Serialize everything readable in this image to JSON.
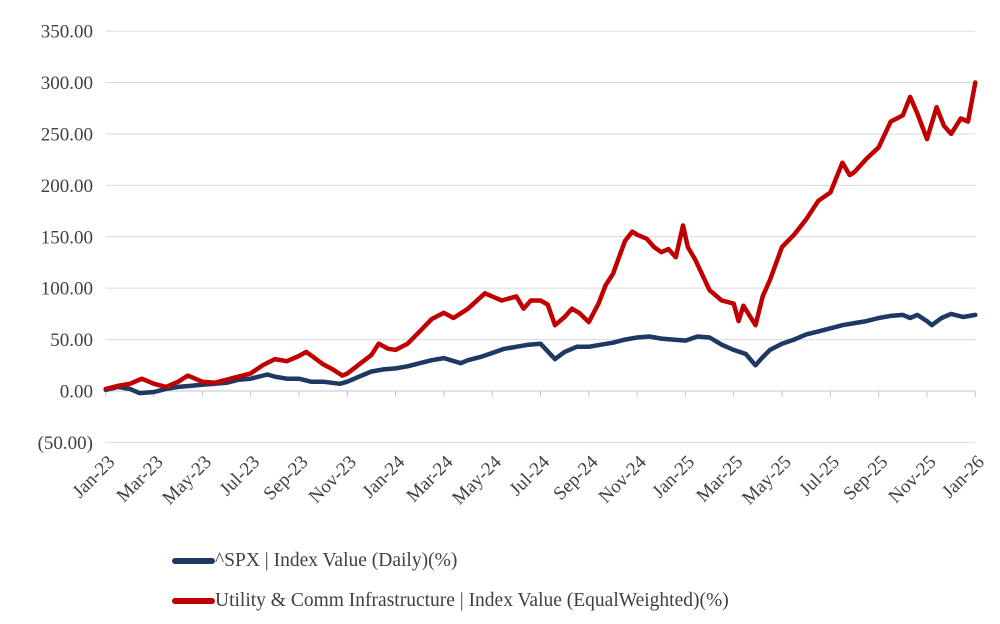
{
  "chart_data": {
    "type": "line",
    "title": "",
    "grid": true,
    "legend_position": "bottom-left",
    "x_axis": {
      "unit": "month",
      "range_months": [
        0,
        36
      ],
      "ticks": [
        {
          "label": "Jan-23",
          "month": 0
        },
        {
          "label": "Mar-23",
          "month": 2
        },
        {
          "label": "May-23",
          "month": 4
        },
        {
          "label": "Jul-23",
          "month": 6
        },
        {
          "label": "Sep-23",
          "month": 8
        },
        {
          "label": "Nov-23",
          "month": 10
        },
        {
          "label": "Jan-24",
          "month": 12
        },
        {
          "label": "Mar-24",
          "month": 14
        },
        {
          "label": "May-24",
          "month": 16
        },
        {
          "label": "Jul-24",
          "month": 18
        },
        {
          "label": "Sep-24",
          "month": 20
        },
        {
          "label": "Nov-24",
          "month": 22
        },
        {
          "label": "Jan-25",
          "month": 24
        },
        {
          "label": "Mar-25",
          "month": 26
        },
        {
          "label": "May-25",
          "month": 28
        },
        {
          "label": "Jul-25",
          "month": 30
        },
        {
          "label": "Sep-25",
          "month": 32
        },
        {
          "label": "Nov-25",
          "month": 34
        },
        {
          "label": "Jan-26",
          "month": 36
        }
      ]
    },
    "y_axis": {
      "range": [
        -50,
        350
      ],
      "ticks": [
        {
          "label": "350.00",
          "value": 350
        },
        {
          "label": "300.00",
          "value": 300
        },
        {
          "label": "250.00",
          "value": 250
        },
        {
          "label": "200.00",
          "value": 200
        },
        {
          "label": "150.00",
          "value": 150
        },
        {
          "label": "100.00",
          "value": 100
        },
        {
          "label": "50.00",
          "value": 50
        },
        {
          "label": "0.00",
          "value": 0
        },
        {
          "label": "(50.00)",
          "value": -50
        }
      ]
    },
    "colors": {
      "spx": "#1f3864",
      "utility": "#c00000",
      "gridline": "#d9d9d9",
      "axis": "#c6c6c6",
      "text": "#404040"
    },
    "series": [
      {
        "id": "spx",
        "name": "^SPX | Index Value (Daily)(%)",
        "color": "#1f3864",
        "points": [
          [
            0,
            1
          ],
          [
            0.5,
            4
          ],
          [
            1,
            2
          ],
          [
            1.4,
            -2
          ],
          [
            2,
            -1
          ],
          [
            2.5,
            2
          ],
          [
            3,
            4
          ],
          [
            3.5,
            5
          ],
          [
            4,
            6
          ],
          [
            4.5,
            7
          ],
          [
            5,
            8
          ],
          [
            5.5,
            11
          ],
          [
            6,
            12
          ],
          [
            6.7,
            16
          ],
          [
            7,
            14
          ],
          [
            7.5,
            12
          ],
          [
            8,
            12
          ],
          [
            8.5,
            9
          ],
          [
            9,
            9
          ],
          [
            9.7,
            7
          ],
          [
            10,
            9
          ],
          [
            10.5,
            14
          ],
          [
            11,
            19
          ],
          [
            11.5,
            21
          ],
          [
            12,
            22
          ],
          [
            12.5,
            24
          ],
          [
            13,
            27
          ],
          [
            13.5,
            30
          ],
          [
            14,
            32
          ],
          [
            14.7,
            27
          ],
          [
            15,
            30
          ],
          [
            15.5,
            33
          ],
          [
            16,
            37
          ],
          [
            16.5,
            41
          ],
          [
            17,
            43
          ],
          [
            17.5,
            45
          ],
          [
            18,
            46
          ],
          [
            18.6,
            31
          ],
          [
            19,
            38
          ],
          [
            19.5,
            43
          ],
          [
            20,
            43
          ],
          [
            20.5,
            45
          ],
          [
            21,
            47
          ],
          [
            21.5,
            50
          ],
          [
            22,
            52
          ],
          [
            22.5,
            53
          ],
          [
            23,
            51
          ],
          [
            23.5,
            50
          ],
          [
            24,
            49
          ],
          [
            24.5,
            53
          ],
          [
            25,
            52
          ],
          [
            25.5,
            45
          ],
          [
            26,
            40
          ],
          [
            26.5,
            36
          ],
          [
            26.9,
            25
          ],
          [
            27.2,
            33
          ],
          [
            27.5,
            40
          ],
          [
            28,
            46
          ],
          [
            28.5,
            50
          ],
          [
            29,
            55
          ],
          [
            29.5,
            58
          ],
          [
            30,
            61
          ],
          [
            30.5,
            64
          ],
          [
            31,
            66
          ],
          [
            31.5,
            68
          ],
          [
            32,
            71
          ],
          [
            32.5,
            73
          ],
          [
            33,
            74
          ],
          [
            33.3,
            71
          ],
          [
            33.6,
            74
          ],
          [
            34,
            68
          ],
          [
            34.2,
            64
          ],
          [
            34.6,
            71
          ],
          [
            35,
            75
          ],
          [
            35.5,
            72
          ],
          [
            36,
            74
          ]
        ]
      },
      {
        "id": "utility",
        "name": "Utility & Comm Infrastructure | Index Value (EqualWeighted)(%)",
        "color": "#c00000",
        "points": [
          [
            0,
            2
          ],
          [
            0.5,
            5
          ],
          [
            1,
            7
          ],
          [
            1.5,
            12
          ],
          [
            2,
            7
          ],
          [
            2.5,
            4
          ],
          [
            3,
            9
          ],
          [
            3.4,
            15
          ],
          [
            4,
            9
          ],
          [
            4.5,
            8
          ],
          [
            5,
            11
          ],
          [
            5.5,
            14
          ],
          [
            6,
            17
          ],
          [
            6.5,
            25
          ],
          [
            7,
            31
          ],
          [
            7.5,
            29
          ],
          [
            8,
            34
          ],
          [
            8.3,
            38
          ],
          [
            8.6,
            33
          ],
          [
            9,
            26
          ],
          [
            9.4,
            21
          ],
          [
            9.8,
            15
          ],
          [
            10,
            17
          ],
          [
            10.5,
            26
          ],
          [
            11,
            35
          ],
          [
            11.3,
            46
          ],
          [
            11.7,
            41
          ],
          [
            12,
            40
          ],
          [
            12.5,
            46
          ],
          [
            13,
            58
          ],
          [
            13.5,
            70
          ],
          [
            14,
            76
          ],
          [
            14.4,
            71
          ],
          [
            15,
            80
          ],
          [
            15.7,
            95
          ],
          [
            16,
            92
          ],
          [
            16.4,
            88
          ],
          [
            17,
            92
          ],
          [
            17.3,
            80
          ],
          [
            17.6,
            88
          ],
          [
            18,
            88
          ],
          [
            18.3,
            84
          ],
          [
            18.6,
            64
          ],
          [
            19,
            72
          ],
          [
            19.3,
            80
          ],
          [
            19.6,
            76
          ],
          [
            20,
            67
          ],
          [
            20.4,
            85
          ],
          [
            20.7,
            103
          ],
          [
            21,
            114
          ],
          [
            21.5,
            146
          ],
          [
            21.8,
            155
          ],
          [
            22,
            152
          ],
          [
            22.4,
            148
          ],
          [
            22.7,
            140
          ],
          [
            23,
            135
          ],
          [
            23.3,
            138
          ],
          [
            23.6,
            130
          ],
          [
            23.9,
            161
          ],
          [
            24.1,
            140
          ],
          [
            24.4,
            128
          ],
          [
            25,
            98
          ],
          [
            25.5,
            88
          ],
          [
            26,
            85
          ],
          [
            26.2,
            68
          ],
          [
            26.4,
            83
          ],
          [
            26.9,
            64
          ],
          [
            27.2,
            92
          ],
          [
            27.5,
            108
          ],
          [
            28,
            140
          ],
          [
            28.5,
            152
          ],
          [
            29,
            167
          ],
          [
            29.5,
            185
          ],
          [
            30,
            193
          ],
          [
            30.5,
            222
          ],
          [
            30.8,
            210
          ],
          [
            31,
            213
          ],
          [
            31.5,
            226
          ],
          [
            32,
            237
          ],
          [
            32.5,
            262
          ],
          [
            33,
            268
          ],
          [
            33.3,
            286
          ],
          [
            33.6,
            270
          ],
          [
            34,
            245
          ],
          [
            34.4,
            276
          ],
          [
            34.7,
            258
          ],
          [
            35,
            250
          ],
          [
            35.4,
            265
          ],
          [
            35.7,
            262
          ],
          [
            36,
            300
          ]
        ]
      }
    ],
    "legend": [
      {
        "series": "spx"
      },
      {
        "series": "utility"
      }
    ]
  }
}
